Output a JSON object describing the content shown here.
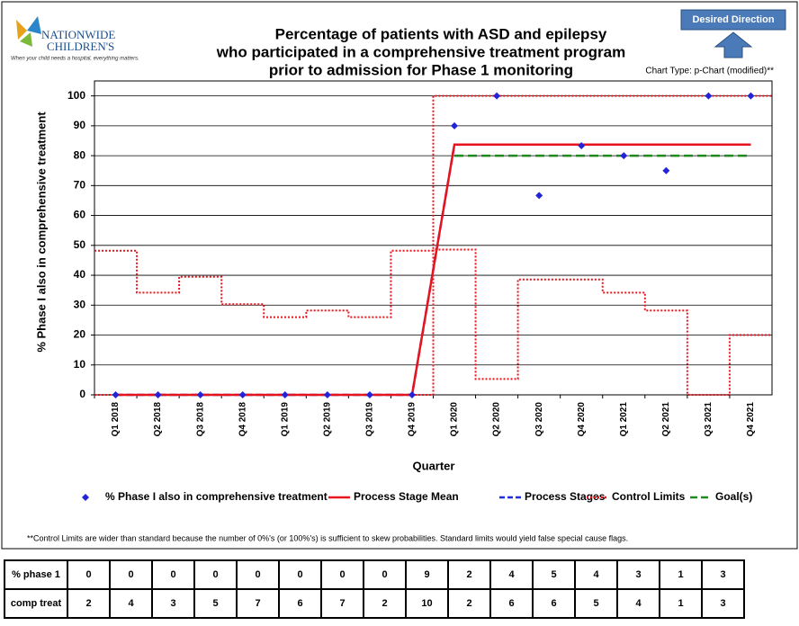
{
  "chart_data": {
    "type": "line",
    "logo": {
      "name_line1": "NATIONWIDE",
      "name_line2": "CHILDREN'S",
      "tagline": "When your child needs a hospital, everything matters."
    },
    "title_lines": [
      "Percentage of patients with ASD and epilepsy",
      "who participated in a comprehensive treatment program",
      "prior to admission for Phase 1 monitoring"
    ],
    "desired_direction": "Desired Direction",
    "chart_type_note": "Chart Type: p-Chart (modified)**",
    "y_axis_label": "% Phase I also in comprehensive treatment",
    "x_axis_label": "Quarter",
    "categories": [
      "Q1 2018",
      "Q2 2018",
      "Q3 2018",
      "Q4 2018",
      "Q1 2019",
      "Q2 2019",
      "Q3 2019",
      "Q4 2019",
      "Q1 2020",
      "Q2 2020",
      "Q3 2020",
      "Q4 2020",
      "Q1 2021",
      "Q2 2021",
      "Q3 2021",
      "Q4 2021"
    ],
    "series": [
      {
        "name": "% Phase I also in comprehensive treatment",
        "color": "#2323d8",
        "style": "marker",
        "values": [
          0,
          0,
          0,
          0,
          0,
          0,
          0,
          0,
          90,
          100,
          66.67,
          83.33,
          80,
          75,
          100,
          100
        ]
      },
      {
        "name": "Process Stage Mean",
        "color": "#e8141c",
        "style": "solid",
        "values": [
          0,
          0,
          0,
          0,
          0,
          0,
          0,
          0,
          83.7,
          83.7,
          83.7,
          83.7,
          83.7,
          83.7,
          83.7,
          83.7
        ]
      },
      {
        "name": "Process Stages",
        "color": "#1f2fe0",
        "style": "dashed",
        "values": [
          0,
          0,
          0,
          0,
          0,
          0,
          0,
          0,
          83.7,
          83.7,
          83.7,
          83.7,
          83.7,
          83.7,
          83.7,
          83.7
        ]
      },
      {
        "name": "Control Limits",
        "color": "#e8141c",
        "style": "dotted-step",
        "upper": [
          48.2,
          34.2,
          39.5,
          30.3,
          26,
          28.2,
          26,
          48.2,
          100,
          100,
          100,
          100,
          100,
          100,
          100,
          100
        ],
        "lower": [
          0,
          0,
          0,
          0,
          0,
          0,
          0,
          0,
          48.6,
          5.3,
          38.6,
          38.6,
          34.2,
          28.2,
          0,
          20
        ]
      },
      {
        "name": "Goal(s)",
        "color": "#1e8a1e",
        "style": "goal",
        "values": [
          null,
          null,
          null,
          null,
          null,
          null,
          null,
          null,
          80,
          80,
          80,
          80,
          80,
          80,
          80,
          80
        ]
      }
    ],
    "ylim": [
      0,
      105
    ],
    "yticks": [
      0,
      10,
      20,
      30,
      40,
      50,
      60,
      70,
      80,
      90,
      100
    ],
    "grid": true,
    "footnote": "**Control Limits are wider than standard because the number of 0%'s (or 100%'s) is sufficient to skew probabilities. Standard limits would yield false special cause flags.",
    "table": {
      "rows": [
        {
          "label": "% phase 1",
          "values": [
            0,
            0,
            0,
            0,
            0,
            0,
            0,
            0,
            9,
            2,
            4,
            5,
            4,
            3,
            1,
            3
          ]
        },
        {
          "label": "comp treat",
          "values": [
            2,
            4,
            3,
            5,
            7,
            6,
            7,
            2,
            10,
            2,
            6,
            6,
            5,
            4,
            1,
            3
          ]
        }
      ]
    }
  }
}
